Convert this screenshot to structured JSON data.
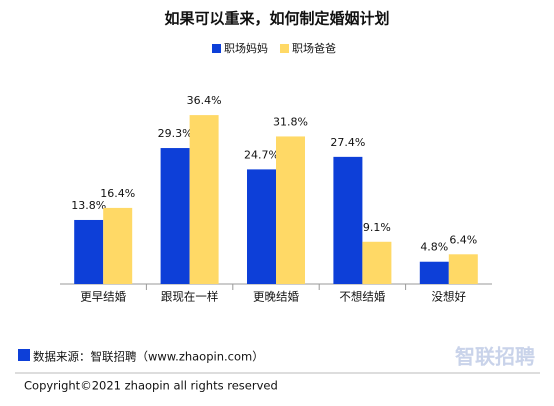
{
  "chart_data": {
    "type": "bar",
    "title": "如果可以重来，如何制定婚姻计划",
    "categories": [
      "更早结婚",
      "跟现在一样",
      "更晚结婚",
      "不想结婚",
      "没想好"
    ],
    "series": [
      {
        "name": "职场妈妈",
        "color": "#0d3fd8",
        "values": [
          13.8,
          29.3,
          24.7,
          27.4,
          4.8
        ],
        "value_labels": [
          "13.8%",
          "29.3%",
          "24.7%",
          "27.4%",
          "4.8%"
        ]
      },
      {
        "name": "职场爸爸",
        "color": "#ffd966",
        "values": [
          16.4,
          36.4,
          31.8,
          9.1,
          6.4
        ],
        "value_labels": [
          "16.4%",
          "36.4%",
          "31.8%",
          "9.1%",
          "6.4%"
        ]
      }
    ],
    "legend": "top",
    "source": "数据来源：智联招聘（www.zhaopin.com）",
    "copyright": "Copyright©2021 zhaopin all rights reserved",
    "logo": "智联招聘"
  }
}
